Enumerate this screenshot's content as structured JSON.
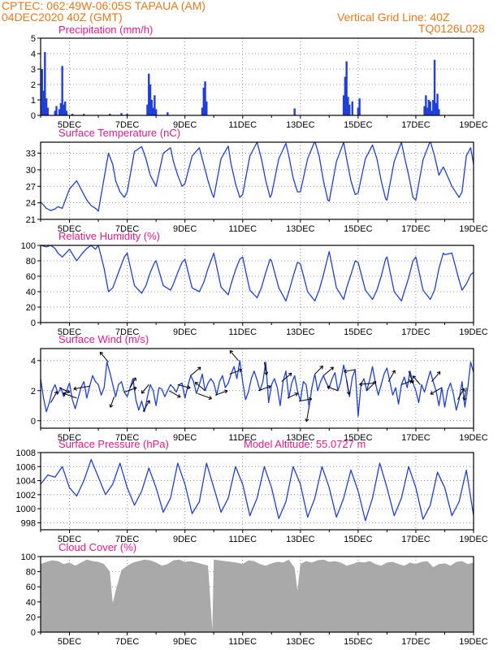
{
  "header": {
    "left_line1": "CPTEC:   062:49W-06:05S   TAPAUA (AM)",
    "left_line2": "04DEC2020 40Z (GMT)",
    "right_line1": "Vertical Grid Line: 40Z",
    "right_line2": "TQ0126L028"
  },
  "colors": {
    "header": "#e8781e",
    "panel_title": "#e8188a",
    "series": "#1f3fd8",
    "cloud": "#a9a9a9",
    "axis": "#000000",
    "grid": "#777777"
  },
  "x_axis": {
    "start": "04DEC2020 00Z",
    "end": "19DEC2020 00Z",
    "tick_labels": [
      "5DEC",
      "7DEC",
      "9DEC",
      "11DEC",
      "13DEC",
      "15DEC",
      "17DEC",
      "19DEC"
    ],
    "tick_days": [
      5,
      7,
      9,
      11,
      13,
      15,
      17,
      19
    ]
  },
  "chart_data": [
    {
      "type": "bar",
      "title": "Precipitation (mm/h)",
      "unit": "mm/h",
      "ylim": [
        0,
        5
      ],
      "yticks": [
        0,
        1,
        2,
        3,
        4,
        5
      ],
      "grid": true,
      "x_unit": "day of December 2020",
      "x": [
        4.05,
        4.1,
        4.15,
        4.2,
        4.25,
        4.5,
        4.55,
        4.65,
        4.7,
        4.75,
        4.8,
        4.85,
        4.9,
        5.1,
        5.5,
        6.4,
        6.8,
        7.0,
        7.7,
        7.75,
        7.8,
        7.85,
        7.9,
        7.95,
        8.0,
        8.4,
        9.6,
        9.65,
        9.7,
        9.75,
        12.8,
        14.5,
        14.55,
        14.6,
        14.65,
        14.7,
        14.8,
        15.0,
        15.05,
        17.3,
        17.35,
        17.4,
        17.45,
        17.5,
        17.55,
        17.6,
        17.65,
        17.7,
        17.75,
        17.8
      ],
      "values": [
        3.0,
        1.6,
        4.1,
        1.1,
        0.5,
        0.3,
        0.6,
        0.4,
        0.8,
        3.2,
        0.7,
        0.9,
        0.3,
        0.1,
        0.1,
        0.1,
        0.15,
        0.1,
        0.7,
        2.7,
        2.0,
        1.0,
        0.5,
        1.3,
        0.4,
        0.2,
        0.5,
        1.8,
        2.2,
        0.9,
        0.45,
        1.3,
        2.5,
        3.5,
        1.2,
        0.7,
        0.9,
        0.5,
        1.1,
        0.6,
        1.3,
        0.5,
        1.0,
        0.9,
        0.3,
        1.0,
        3.6,
        0.8,
        1.4,
        0.4
      ]
    },
    {
      "type": "line",
      "title": "Surface Temperature (nC)",
      "unit": "nC",
      "ylim": [
        21,
        35
      ],
      "yticks": [
        21,
        24,
        27,
        30,
        33
      ],
      "grid": true,
      "x_unit": "day of December 2020",
      "x": [
        4.0,
        4.2,
        4.35,
        4.5,
        4.6,
        4.75,
        5.0,
        5.25,
        5.45,
        5.6,
        5.75,
        5.9,
        6.0,
        6.2,
        6.35,
        6.5,
        6.6,
        6.75,
        6.9,
        7.0,
        7.25,
        7.5,
        7.65,
        7.8,
        7.95,
        8.0,
        8.25,
        8.5,
        8.6,
        8.75,
        8.9,
        9.0,
        9.25,
        9.5,
        9.65,
        9.8,
        9.95,
        10.0,
        10.25,
        10.5,
        10.6,
        10.75,
        10.9,
        11.0,
        11.25,
        11.5,
        11.65,
        11.8,
        11.95,
        12.0,
        12.25,
        12.5,
        12.6,
        12.75,
        12.9,
        13.0,
        13.25,
        13.5,
        13.65,
        13.8,
        13.95,
        14.0,
        14.25,
        14.5,
        14.6,
        14.75,
        14.9,
        15.0,
        15.25,
        15.5,
        15.65,
        15.8,
        15.95,
        16.0,
        16.25,
        16.5,
        16.6,
        16.75,
        16.9,
        17.0,
        17.25,
        17.5,
        17.65,
        17.8,
        17.95,
        18.0,
        18.25,
        18.5,
        18.6,
        18.75,
        18.9,
        19.0
      ],
      "values": [
        24.2,
        23.0,
        22.6,
        22.9,
        23.3,
        23.0,
        26.5,
        28.0,
        26.0,
        24.5,
        23.5,
        23.0,
        22.5,
        28.5,
        33.0,
        31.0,
        28.0,
        26.0,
        25.0,
        26.0,
        33.3,
        34.2,
        32.0,
        29.0,
        27.5,
        27.0,
        33.0,
        34.0,
        31.5,
        29.0,
        27.0,
        27.5,
        32.5,
        34.0,
        31.0,
        28.0,
        25.5,
        25.0,
        32.0,
        34.3,
        31.0,
        27.5,
        25.0,
        25.5,
        32.5,
        35.0,
        32.0,
        28.0,
        25.0,
        25.5,
        32.0,
        34.8,
        32.5,
        28.5,
        26.0,
        26.0,
        32.0,
        35.2,
        32.5,
        28.0,
        24.5,
        24.3,
        31.5,
        35.0,
        32.0,
        28.0,
        25.5,
        25.8,
        32.0,
        34.5,
        32.0,
        28.0,
        24.8,
        24.5,
        31.5,
        35.0,
        32.5,
        29.0,
        25.0,
        24.5,
        31.8,
        35.2,
        32.5,
        29.0,
        30.5,
        30.0,
        27.0,
        25.0,
        26.0,
        32.5,
        34.0,
        31.0
      ]
    },
    {
      "type": "line",
      "title": "Relative Humidity (%)",
      "unit": "%",
      "ylim": [
        0,
        100
      ],
      "yticks": [
        0,
        20,
        40,
        60,
        80,
        100
      ],
      "grid": true,
      "x_unit": "day of December 2020",
      "x": [
        4.0,
        4.2,
        4.35,
        4.5,
        4.6,
        4.75,
        5.0,
        5.25,
        5.45,
        5.6,
        5.75,
        5.9,
        6.0,
        6.2,
        6.35,
        6.5,
        6.6,
        6.75,
        6.9,
        7.0,
        7.25,
        7.5,
        7.65,
        7.8,
        7.95,
        8.0,
        8.25,
        8.5,
        8.6,
        8.75,
        8.9,
        9.0,
        9.25,
        9.5,
        9.65,
        9.8,
        9.95,
        10.0,
        10.25,
        10.5,
        10.6,
        10.75,
        10.9,
        11.0,
        11.25,
        11.5,
        11.65,
        11.8,
        11.95,
        12.0,
        12.25,
        12.5,
        12.6,
        12.75,
        12.9,
        13.0,
        13.25,
        13.5,
        13.65,
        13.8,
        13.95,
        14.0,
        14.25,
        14.5,
        14.6,
        14.75,
        14.9,
        15.0,
        15.25,
        15.5,
        15.65,
        15.8,
        15.95,
        16.0,
        16.25,
        16.5,
        16.6,
        16.75,
        16.9,
        17.0,
        17.25,
        17.5,
        17.65,
        17.8,
        17.95,
        18.0,
        18.25,
        18.5,
        18.6,
        18.75,
        18.9,
        19.0
      ],
      "values": [
        100,
        98,
        100,
        96,
        90,
        85,
        95,
        80,
        90,
        96,
        100,
        95,
        100,
        70,
        40,
        45,
        55,
        70,
        85,
        90,
        48,
        38,
        48,
        65,
        78,
        80,
        48,
        42,
        50,
        65,
        78,
        82,
        45,
        40,
        52,
        70,
        85,
        90,
        46,
        36,
        50,
        68,
        82,
        85,
        42,
        32,
        45,
        65,
        82,
        80,
        45,
        28,
        40,
        60,
        78,
        76,
        40,
        28,
        42,
        62,
        85,
        92,
        45,
        30,
        45,
        62,
        80,
        78,
        42,
        30,
        42,
        60,
        82,
        85,
        40,
        28,
        40,
        58,
        80,
        85,
        42,
        30,
        42,
        70,
        90,
        88,
        90,
        55,
        42,
        50,
        62,
        65
      ]
    },
    {
      "type": "line",
      "title": "Surface Wind (m/s)",
      "unit": "m/s",
      "ylim": [
        -0.5,
        4.8
      ],
      "yticks": [
        0,
        2,
        4
      ],
      "grid": true,
      "x_unit": "day of December 2020",
      "x": [
        4.0,
        4.1,
        4.2,
        4.3,
        4.4,
        4.5,
        4.6,
        4.7,
        4.8,
        4.9,
        5.0,
        5.1,
        5.2,
        5.3,
        5.4,
        5.5,
        5.6,
        5.7,
        5.8,
        5.9,
        6.0,
        6.1,
        6.2,
        6.3,
        6.4,
        6.5,
        6.6,
        6.7,
        6.8,
        6.9,
        7.0,
        7.1,
        7.2,
        7.3,
        7.4,
        7.5,
        7.6,
        7.7,
        7.8,
        7.9,
        8.0,
        8.1,
        8.2,
        8.3,
        8.4,
        8.5,
        8.6,
        8.7,
        8.8,
        8.9,
        9.0,
        9.1,
        9.2,
        9.3,
        9.4,
        9.5,
        9.6,
        9.7,
        9.8,
        9.9,
        10.0,
        10.1,
        10.2,
        10.3,
        10.4,
        10.5,
        10.6,
        10.7,
        10.8,
        10.9,
        11.0,
        11.1,
        11.2,
        11.3,
        11.4,
        11.5,
        11.6,
        11.7,
        11.8,
        11.9,
        12.0,
        12.1,
        12.2,
        12.3,
        12.4,
        12.5,
        12.6,
        12.7,
        12.8,
        12.9,
        13.0,
        13.1,
        13.2,
        13.3,
        13.4,
        13.5,
        13.6,
        13.7,
        13.8,
        13.9,
        14.0,
        14.1,
        14.2,
        14.3,
        14.4,
        14.5,
        14.6,
        14.7,
        14.8,
        14.9,
        15.0,
        15.1,
        15.2,
        15.3,
        15.4,
        15.5,
        15.6,
        15.7,
        15.8,
        15.9,
        16.0,
        16.1,
        16.2,
        16.3,
        16.4,
        16.5,
        16.6,
        16.7,
        16.8,
        16.9,
        17.0,
        17.1,
        17.2,
        17.3,
        17.4,
        17.5,
        17.6,
        17.7,
        17.8,
        17.9,
        18.0,
        18.1,
        18.2,
        18.3,
        18.4,
        18.5,
        18.6,
        18.7,
        18.8,
        18.9,
        19.0
      ],
      "values": [
        2.8,
        1.5,
        0.6,
        1.2,
        2.0,
        2.4,
        1.8,
        2.2,
        1.6,
        2.0,
        2.5,
        1.4,
        0.8,
        1.5,
        2.2,
        2.6,
        1.5,
        2.3,
        3.0,
        2.6,
        2.4,
        1.7,
        2.2,
        3.9,
        3.2,
        2.4,
        1.6,
        2.4,
        2.6,
        1.9,
        1.6,
        2.2,
        2.8,
        1.4,
        0.7,
        1.3,
        0.6,
        1.6,
        2.4,
        2.0,
        1.0,
        2.2,
        2.1,
        1.6,
        2.0,
        2.4,
        2.2,
        1.9,
        2.4,
        2.5,
        1.5,
        2.3,
        3.0,
        2.6,
        1.8,
        2.4,
        3.1,
        2.0,
        2.5,
        2.8,
        2.5,
        1.7,
        2.6,
        3.0,
        2.2,
        2.5,
        3.1,
        3.6,
        2.8,
        4.0,
        2.6,
        1.4,
        1.9,
        2.8,
        3.3,
        2.7,
        2.0,
        2.6,
        3.9,
        1.2,
        2.4,
        2.8,
        2.2,
        1.0,
        2.6,
        3.3,
        1.5,
        2.5,
        3.0,
        2.0,
        1.3,
        2.6,
        2.4,
        0.9,
        2.2,
        3.1,
        2.0,
        2.6,
        3.0,
        2.5,
        2.2,
        2.8,
        3.2,
        2.0,
        2.6,
        3.7,
        2.7,
        1.6,
        2.9,
        3.4,
        0.3,
        2.4,
        2.8,
        2.0,
        2.7,
        3.6,
        2.5,
        1.7,
        2.4,
        3.1,
        3.5,
        2.6,
        1.7,
        2.2,
        1.1,
        2.4,
        2.9,
        2.2,
        3.3,
        2.5,
        2.0,
        1.2,
        2.4,
        1.9,
        2.6,
        3.3,
        2.6,
        2.0,
        1.0,
        2.2,
        0.9,
        2.0,
        2.5,
        1.8,
        0.7,
        1.4,
        2.6,
        0.9,
        2.2,
        3.9,
        3.2
      ]
    },
    {
      "type": "line",
      "title": "Surface Pressure (hPa)",
      "subtitle": "Model Altitude: 55.0727 m",
      "unit": "hPa",
      "ylim": [
        997,
        1008
      ],
      "yticks": [
        998,
        1000,
        1002,
        1004,
        1006,
        1008
      ],
      "grid": true,
      "x_unit": "day of December 2020",
      "x": [
        4.0,
        4.25,
        4.5,
        4.75,
        5.0,
        5.25,
        5.5,
        5.75,
        6.0,
        6.25,
        6.5,
        6.75,
        7.0,
        7.25,
        7.5,
        7.75,
        8.0,
        8.25,
        8.5,
        8.75,
        9.0,
        9.25,
        9.5,
        9.75,
        10.0,
        10.25,
        10.5,
        10.75,
        11.0,
        11.25,
        11.5,
        11.75,
        12.0,
        12.25,
        12.5,
        12.75,
        13.0,
        13.25,
        13.5,
        13.75,
        14.0,
        14.25,
        14.5,
        14.75,
        15.0,
        15.25,
        15.5,
        15.75,
        16.0,
        16.25,
        16.5,
        16.75,
        17.0,
        17.25,
        17.5,
        17.75,
        18.0,
        18.25,
        18.5,
        18.75,
        19.0
      ],
      "values": [
        1003.5,
        1004.8,
        1004.5,
        1006.0,
        1003.0,
        1001.8,
        1004.0,
        1007.0,
        1004.5,
        1002.0,
        1003.5,
        1006.5,
        1003.0,
        1000.5,
        1002.5,
        1005.8,
        1003.0,
        999.5,
        1001.5,
        1006.5,
        1003.5,
        999.3,
        1001.0,
        1006.5,
        1003.0,
        999.5,
        1001.5,
        1006.0,
        1003.5,
        999.0,
        1001.5,
        1006.0,
        1003.0,
        998.6,
        1001.0,
        1006.0,
        1003.5,
        998.8,
        1001.5,
        1006.0,
        1003.0,
        998.8,
        1001.5,
        1005.5,
        1002.5,
        998.3,
        1001.5,
        1006.5,
        1003.0,
        999.0,
        1001.5,
        1006.0,
        1003.0,
        998.5,
        1000.5,
        1005.2,
        1003.0,
        999.0,
        1001.0,
        1005.5,
        999.0
      ]
    },
    {
      "type": "area",
      "title": "Cloud Cover (%)",
      "unit": "%",
      "ylim": [
        0,
        100
      ],
      "yticks": [
        0,
        20,
        40,
        60,
        80,
        100
      ],
      "grid": true,
      "x_unit": "day of December 2020",
      "x": [
        4.0,
        4.2,
        4.4,
        4.6,
        4.8,
        5.0,
        5.2,
        5.4,
        5.6,
        5.8,
        6.0,
        6.2,
        6.4,
        6.5,
        6.6,
        6.8,
        7.0,
        7.2,
        7.4,
        7.6,
        7.8,
        8.0,
        8.2,
        8.4,
        8.6,
        8.8,
        9.0,
        9.2,
        9.4,
        9.6,
        9.8,
        9.95,
        10.0,
        10.2,
        10.4,
        10.6,
        10.8,
        11.0,
        11.2,
        11.4,
        11.6,
        11.8,
        12.0,
        12.2,
        12.4,
        12.6,
        12.8,
        12.9,
        13.0,
        13.2,
        13.4,
        13.6,
        13.8,
        14.0,
        14.2,
        14.4,
        14.6,
        14.8,
        15.0,
        15.2,
        15.4,
        15.6,
        15.8,
        16.0,
        16.2,
        16.4,
        16.6,
        16.8,
        17.0,
        17.2,
        17.4,
        17.6,
        17.8,
        18.0,
        18.2,
        18.4,
        18.6,
        18.8,
        19.0
      ],
      "values": [
        90,
        93,
        95,
        94,
        90,
        92,
        88,
        92,
        96,
        94,
        93,
        90,
        80,
        38,
        55,
        82,
        88,
        92,
        94,
        96,
        95,
        92,
        88,
        90,
        95,
        96,
        93,
        94,
        92,
        90,
        88,
        3,
        96,
        95,
        94,
        93,
        92,
        90,
        95,
        94,
        90,
        88,
        91,
        93,
        92,
        96,
        85,
        55,
        90,
        94,
        92,
        95,
        96,
        93,
        94,
        92,
        88,
        90,
        93,
        92,
        94,
        90,
        88,
        92,
        93,
        90,
        88,
        92,
        90,
        93,
        94,
        86,
        90,
        91,
        88,
        93,
        94,
        90,
        92
      ]
    }
  ]
}
